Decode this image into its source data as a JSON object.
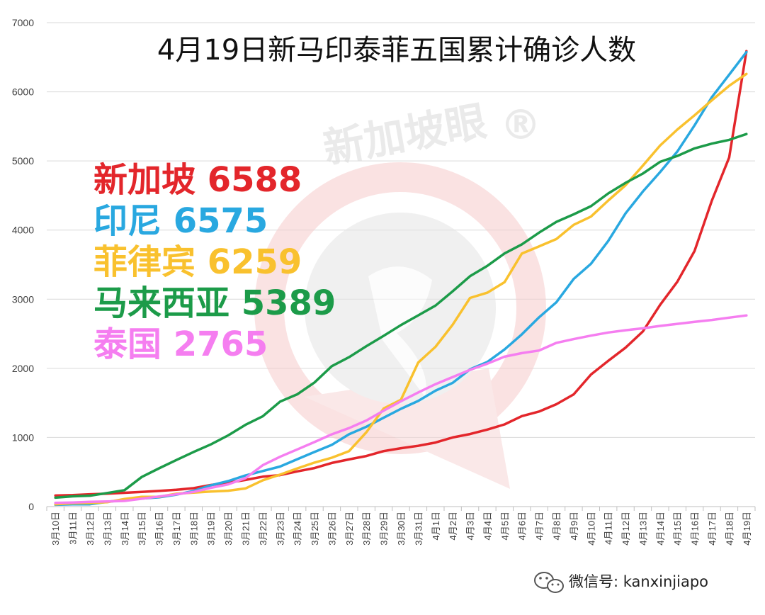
{
  "chart_data": {
    "type": "line",
    "title": "4月19日新马印泰菲五国累计确诊人数",
    "ylim": [
      0,
      7000
    ],
    "yticks": [
      0,
      1000,
      2000,
      3000,
      4000,
      5000,
      6000,
      7000
    ],
    "grid": "horizontal",
    "legend_position": "left",
    "categories": [
      "3月10日",
      "3月11日",
      "3月12日",
      "3月13日",
      "3月14日",
      "3月15日",
      "3月16日",
      "3月17日",
      "3月18日",
      "3月19日",
      "3月20日",
      "3月21日",
      "3月22日",
      "3月23日",
      "3月24日",
      "3月25日",
      "3月26日",
      "3月27日",
      "3月28日",
      "3月29日",
      "3月30日",
      "3月31日",
      "4月1日",
      "4月2日",
      "4月3日",
      "4月4日",
      "4月5日",
      "4月6日",
      "4月7日",
      "4月8日",
      "4月9日",
      "4月10日",
      "4月11日",
      "4月12日",
      "4月13日",
      "4月14日",
      "4月15日",
      "4月16日",
      "4月17日",
      "4月18日",
      "4月19日"
    ],
    "series": [
      {
        "name": "新加坡",
        "label": "新加坡 6588",
        "color": "#e3262b",
        "values": [
          160,
          166,
          178,
          187,
          200,
          212,
          226,
          243,
          266,
          313,
          345,
          385,
          432,
          455,
          509,
          558,
          631,
          683,
          732,
          802,
          844,
          879,
          926,
          1000,
          1049,
          1114,
          1189,
          1309,
          1375,
          1481,
          1623,
          1910,
          2108,
          2299,
          2532,
          2918,
          3252,
          3699,
          4427,
          5050,
          6588
        ]
      },
      {
        "name": "印尼",
        "label": "印尼 6575",
        "color": "#29a8e0",
        "values": [
          27,
          34,
          34,
          69,
          96,
          117,
          134,
          172,
          227,
          309,
          369,
          450,
          514,
          579,
          686,
          790,
          893,
          1046,
          1155,
          1285,
          1414,
          1528,
          1677,
          1790,
          1986,
          2092,
          2273,
          2491,
          2738,
          2956,
          3293,
          3512,
          3842,
          4241,
          4557,
          4839,
          5136,
          5516,
          5923,
          6248,
          6575
        ]
      },
      {
        "name": "菲律宾",
        "label": "菲律宾 6259",
        "color": "#f9c12e",
        "values": [
          33,
          49,
          52,
          64,
          111,
          140,
          142,
          187,
          202,
          217,
          230,
          262,
          380,
          462,
          552,
          636,
          707,
          803,
          1075,
          1418,
          1546,
          2084,
          2311,
          2633,
          3018,
          3094,
          3246,
          3660,
          3764,
          3870,
          4076,
          4195,
          4428,
          4648,
          4932,
          5223,
          5453,
          5660,
          5878,
          6087,
          6259
        ]
      },
      {
        "name": "马来西亚",
        "label": "马来西亚 5389",
        "color": "#1c9b49",
        "values": [
          129,
          149,
          158,
          197,
          238,
          428,
          553,
          673,
          790,
          900,
          1030,
          1183,
          1306,
          1518,
          1624,
          1796,
          2031,
          2161,
          2320,
          2470,
          2626,
          2766,
          2908,
          3116,
          3333,
          3483,
          3662,
          3793,
          3963,
          4119,
          4228,
          4346,
          4530,
          4683,
          4817,
          4987,
          5072,
          5182,
          5251,
          5305,
          5389
        ]
      },
      {
        "name": "泰国",
        "label": "泰国 2765",
        "color": "#f57ef0",
        "values": [
          53,
          59,
          70,
          75,
          82,
          114,
          147,
          177,
          212,
          272,
          322,
          411,
          599,
          721,
          827,
          934,
          1045,
          1136,
          1245,
          1388,
          1524,
          1651,
          1771,
          1875,
          1978,
          2067,
          2169,
          2220,
          2258,
          2369,
          2423,
          2473,
          2518,
          2551,
          2579,
          2613,
          2643,
          2672,
          2700,
          2733,
          2765
        ]
      }
    ]
  },
  "watermark": {
    "text": "新加坡眼",
    "mark": "®"
  },
  "footer": {
    "icon": "wechat-icon",
    "label": "微信号: kanxinjiapo"
  }
}
